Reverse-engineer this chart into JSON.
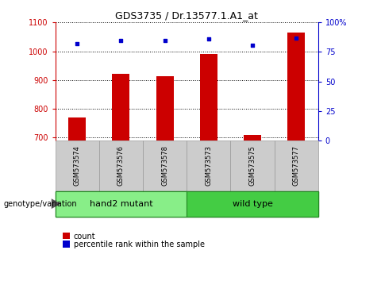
{
  "title": "GDS3735 / Dr.13577.1.A1_at",
  "samples": [
    "GSM573574",
    "GSM573576",
    "GSM573578",
    "GSM573573",
    "GSM573575",
    "GSM573577"
  ],
  "counts": [
    770,
    922,
    912,
    990,
    710,
    1065
  ],
  "percentile_ranks": [
    82,
    85,
    85,
    86,
    81,
    87
  ],
  "ylim_left": [
    690,
    1100
  ],
  "ylim_right": [
    0,
    100
  ],
  "yticks_left": [
    700,
    800,
    900,
    1000,
    1100
  ],
  "yticks_right": [
    0,
    25,
    50,
    75,
    100
  ],
  "bar_color": "#cc0000",
  "scatter_color": "#0000cc",
  "groups": [
    {
      "label": "hand2 mutant",
      "indices": [
        0,
        1,
        2
      ],
      "color": "#88ee88"
    },
    {
      "label": "wild type",
      "indices": [
        3,
        4,
        5
      ],
      "color": "#44cc44"
    }
  ],
  "group_label": "genotype/variation",
  "legend_count_label": "count",
  "legend_percentile_label": "percentile rank within the sample",
  "bar_width": 0.4,
  "grid_color": "black",
  "sample_bg": "#cccccc",
  "plot_bg": "white"
}
